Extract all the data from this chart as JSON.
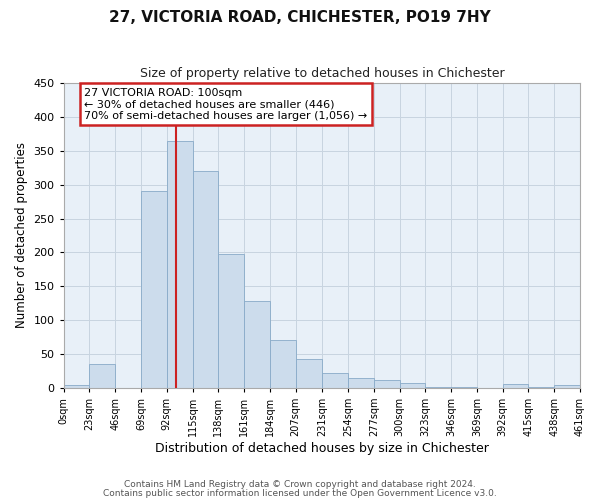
{
  "title": "27, VICTORIA ROAD, CHICHESTER, PO19 7HY",
  "subtitle": "Size of property relative to detached houses in Chichester",
  "xlabel": "Distribution of detached houses by size in Chichester",
  "ylabel": "Number of detached properties",
  "bar_color": "#ccdcec",
  "bar_edge_color": "#88aac8",
  "background_color": "#ffffff",
  "axes_bg_color": "#e8f0f8",
  "grid_color": "#c8d4e0",
  "annotation_box_color": "#ffffff",
  "annotation_box_edge": "#cc2222",
  "vline_color": "#cc2222",
  "vline_x": 100,
  "annotation_title": "27 VICTORIA ROAD: 100sqm",
  "annotation_line1": "← 30% of detached houses are smaller (446)",
  "annotation_line2": "70% of semi-detached houses are larger (1,056) →",
  "footnote1": "Contains HM Land Registry data © Crown copyright and database right 2024.",
  "footnote2": "Contains public sector information licensed under the Open Government Licence v3.0.",
  "bin_edges": [
    0,
    23,
    46,
    69,
    92,
    115,
    138,
    161,
    184,
    207,
    231,
    254,
    277,
    300,
    323,
    346,
    369,
    392,
    415,
    438,
    461
  ],
  "bin_counts": [
    5,
    35,
    0,
    290,
    365,
    320,
    197,
    128,
    70,
    42,
    22,
    14,
    12,
    7,
    1,
    1,
    0,
    6,
    1,
    5
  ],
  "ylim": [
    0,
    450
  ],
  "yticks": [
    0,
    50,
    100,
    150,
    200,
    250,
    300,
    350,
    400,
    450
  ],
  "tick_labels": [
    "0sqm",
    "23sqm",
    "46sqm",
    "69sqm",
    "92sqm",
    "115sqm",
    "138sqm",
    "161sqm",
    "184sqm",
    "207sqm",
    "231sqm",
    "254sqm",
    "277sqm",
    "300sqm",
    "323sqm",
    "346sqm",
    "369sqm",
    "392sqm",
    "415sqm",
    "438sqm",
    "461sqm"
  ]
}
